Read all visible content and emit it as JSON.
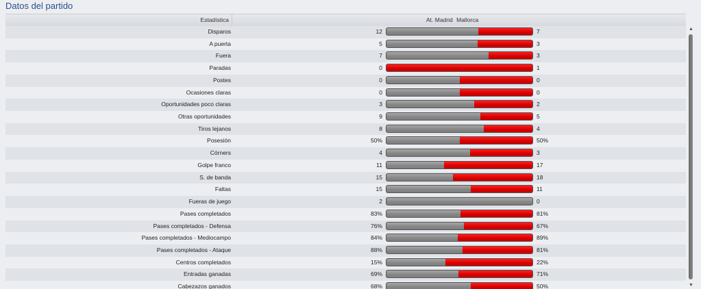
{
  "panel": {
    "title": "Datos del partido"
  },
  "header": {
    "stat_label": "Estadística",
    "home_team": "At. Madrid",
    "away_team": "Mallorca"
  },
  "stats": [
    {
      "label": "Disparos",
      "home": "12",
      "away": "7",
      "home_share": 0.63
    },
    {
      "label": "A puerta",
      "home": "5",
      "away": "3",
      "home_share": 0.625
    },
    {
      "label": "Fuera",
      "home": "7",
      "away": "3",
      "home_share": 0.7
    },
    {
      "label": "Paradas",
      "home": "0",
      "away": "1",
      "home_share": 0.0
    },
    {
      "label": "Postes",
      "home": "0",
      "away": "0",
      "home_share": 0.5
    },
    {
      "label": "Ocasiones claras",
      "home": "0",
      "away": "0",
      "home_share": 0.5
    },
    {
      "label": "Oportunidades poco claras",
      "home": "3",
      "away": "2",
      "home_share": 0.6
    },
    {
      "label": "Otras oportunidades",
      "home": "9",
      "away": "5",
      "home_share": 0.643
    },
    {
      "label": "Tiros lejanos",
      "home": "8",
      "away": "4",
      "home_share": 0.667
    },
    {
      "label": "Posesión",
      "home": "50%",
      "away": "50%",
      "home_share": 0.5
    },
    {
      "label": "Córners",
      "home": "4",
      "away": "3",
      "home_share": 0.571
    },
    {
      "label": "Golpe franco",
      "home": "11",
      "away": "17",
      "home_share": 0.393
    },
    {
      "label": "S. de banda",
      "home": "15",
      "away": "18",
      "home_share": 0.455
    },
    {
      "label": "Faltas",
      "home": "15",
      "away": "11",
      "home_share": 0.577
    },
    {
      "label": "Fueras de juego",
      "home": "2",
      "away": "0",
      "home_share": 1.0
    },
    {
      "label": "Pases completados",
      "home": "83%",
      "away": "81%",
      "home_share": 0.506
    },
    {
      "label": "Pases completados - Defensa",
      "home": "76%",
      "away": "67%",
      "home_share": 0.531
    },
    {
      "label": "Pases completados - Mediocampo",
      "home": "84%",
      "away": "89%",
      "home_share": 0.486
    },
    {
      "label": "Pases completados - Ataque",
      "home": "88%",
      "away": "81%",
      "home_share": 0.521
    },
    {
      "label": "Centros completados",
      "home": "15%",
      "away": "22%",
      "home_share": 0.405
    },
    {
      "label": "Entradas ganadas",
      "home": "69%",
      "away": "71%",
      "home_share": 0.493
    },
    {
      "label": "Cabezazos ganados",
      "home": "68%",
      "away": "50%",
      "home_share": 0.576
    }
  ],
  "colors": {
    "home_bar": "#8a8a8a",
    "away_bar": "#e00000",
    "title": "#2a4f8a"
  },
  "scrollbar": {
    "up_icon": "scroll-up-arrow-icon",
    "down_icon": "scroll-down-arrow-icon"
  }
}
